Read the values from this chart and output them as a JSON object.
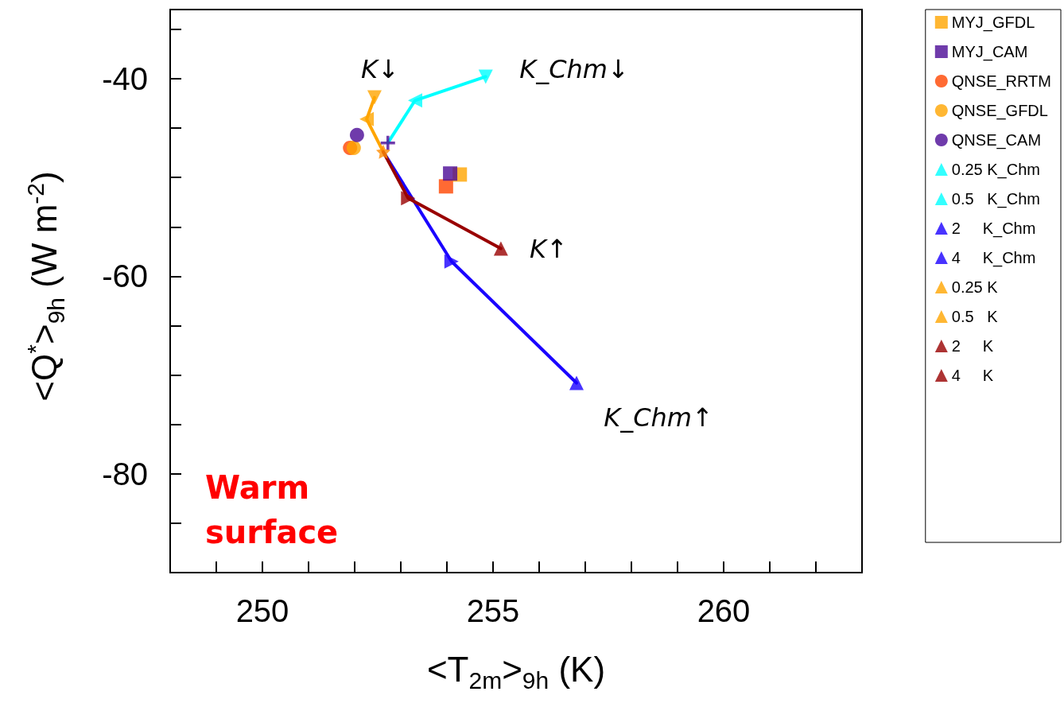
{
  "chart_data": {
    "type": "scatter",
    "xlabel": "<T$_{2m}$>$_{9h}$ (K)",
    "ylabel": "<Q$^{*}$>$_{9h}$ (W m$^{-2}$)",
    "xlim": [
      248,
      263
    ],
    "xticks": [
      {
        "value": 249,
        "label": null
      },
      250,
      {
        "value": 251,
        "label": null
      },
      {
        "value": 252,
        "label": null
      },
      {
        "value": 253,
        "label": null
      },
      {
        "value": 254,
        "label": null
      },
      255,
      {
        "value": 256,
        "label": null
      },
      {
        "value": 257,
        "label": null
      },
      {
        "value": 258,
        "label": null
      },
      {
        "value": 259,
        "label": null
      },
      260,
      {
        "value": 261,
        "label": null
      },
      {
        "value": 262,
        "label": null
      }
    ],
    "ylim": [
      -90,
      -33
    ],
    "yticks": [
      {
        "value": -85,
        "label": null
      },
      -80,
      {
        "value": -75,
        "label": null
      },
      {
        "value": -70,
        "label": null
      },
      {
        "value": -65,
        "label": null
      },
      -60,
      {
        "value": -55,
        "label": null
      },
      {
        "value": -50,
        "label": null
      },
      {
        "value": -45,
        "label": null
      },
      -40,
      {
        "value": -35,
        "label": null
      }
    ],
    "grid": false,
    "legend": "right",
    "series": [
      {
        "type": "line",
        "color": "#00ffff",
        "marker": "none",
        "x": [
          252.72,
          253.31,
          254.84
        ],
        "values": [
          -46.5,
          -42.2,
          -39.8
        ]
      },
      {
        "type": "line",
        "color": "#1a00ff",
        "marker": "none",
        "x": [
          252.62,
          254.1,
          256.81
        ],
        "values": [
          -47.4,
          -58.5,
          -70.8
        ]
      },
      {
        "type": "line",
        "color": "#ffa500",
        "marker": "none",
        "x": [
          252.62,
          252.26,
          252.43
        ],
        "values": [
          -47.4,
          -44.1,
          -41.9
        ]
      },
      {
        "type": "line",
        "color": "#990000",
        "marker": "none",
        "x": [
          252.62,
          253.16,
          255.17
        ],
        "values": [
          -47.4,
          -52.1,
          -57.2
        ]
      },
      {
        "color": "#ff4500",
        "marker": "square",
        "x": [
          253.98
        ],
        "values": [
          -50.9
        ]
      },
      {
        "name": "MYJ_GFDL",
        "color": "#ffa500",
        "marker": "square",
        "x": [
          254.28
        ],
        "values": [
          -49.7
        ]
      },
      {
        "name": "MYJ_CAM",
        "color": "#4b0a96",
        "marker": "square",
        "x": [
          254.07
        ],
        "values": [
          -49.6
        ]
      },
      {
        "name": "QNSE_RRTM",
        "color": "#ff4500",
        "marker": "circle",
        "x": [
          251.9
        ],
        "values": [
          -47.0
        ]
      },
      {
        "name": "QNSE_GFDL",
        "color": "#ffa500",
        "marker": "circle",
        "x": [
          251.98
        ],
        "values": [
          -47.0
        ]
      },
      {
        "name": "QNSE_CAM",
        "color": "#4b0a96",
        "marker": "circle",
        "x": [
          252.05
        ],
        "values": [
          -45.7
        ]
      },
      {
        "color": "#4b0a96",
        "marker": "cross",
        "x": [
          252.72
        ],
        "values": [
          -46.5
        ]
      },
      {
        "color": "#ff8c00",
        "marker": "star",
        "x": [
          252.62
        ],
        "values": [
          -47.4
        ]
      },
      {
        "name": "0.25 K_Chm",
        "color": "#00ffff",
        "marker": "triangle-down",
        "x": [
          254.84
        ],
        "values": [
          -39.8
        ]
      },
      {
        "name": "0.5   K_Chm",
        "color": "#00ffff",
        "marker": "triangle-left",
        "x": [
          253.31
        ],
        "values": [
          -42.2
        ]
      },
      {
        "name": "2     K_Chm",
        "color": "#1a00ff",
        "marker": "triangle-right",
        "x": [
          254.1
        ],
        "values": [
          -58.5
        ]
      },
      {
        "name": "4     K_Chm",
        "color": "#1a00ff",
        "marker": "triangle",
        "x": [
          256.81
        ],
        "values": [
          -70.8
        ]
      },
      {
        "name": "0.25 K",
        "color": "#ffa500",
        "marker": "triangle-down",
        "x": [
          252.43
        ],
        "values": [
          -41.9
        ]
      },
      {
        "name": "0.5   K",
        "color": "#ffa500",
        "marker": "triangle-left",
        "x": [
          252.26
        ],
        "values": [
          -44.1
        ]
      },
      {
        "name": "2     K",
        "color": "#990000",
        "marker": "triangle-right",
        "x": [
          253.16
        ],
        "values": [
          -52.1
        ]
      },
      {
        "name": "4     K",
        "color": "#990000",
        "marker": "triangle",
        "x": [
          255.17
        ],
        "values": [
          -57.2
        ]
      }
    ],
    "annotations": [
      "K↓",
      "K_Chm↓",
      "K↑",
      "K_Chm↑",
      "Warm surface"
    ]
  }
}
